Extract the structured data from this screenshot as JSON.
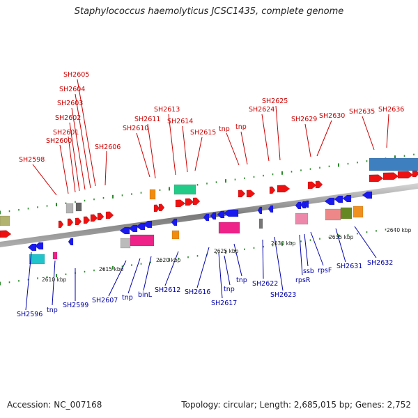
{
  "title": "Staphylococcus haemolyticus JCSC1435, complete genome",
  "accession_text": "Accession: NC_007168",
  "topology_text": "Topology: circular; Length: 2,685,015 bp; Genes: 2,752",
  "colors": {
    "forward_gene": "#ee1111",
    "reverse_gene": "#1a1aee",
    "top_label": "#cc0000",
    "bottom_label": "#0000aa",
    "backbone": "#8a8a8a",
    "tick": "#2a8a2a"
  },
  "scale_labels": [
    "2610 kbp",
    "2615 kbp",
    "2620 kbp",
    "2625 kbp",
    "2630 kbp",
    "2635 kbp",
    "2640 kbp"
  ],
  "top_labels": [
    "SH2598",
    "SH2600",
    "SH2601",
    "SH2602",
    "SH2603",
    "SH2604",
    "SH2605",
    "SH2606",
    "SH2610",
    "SH2611",
    "SH2613",
    "SH2614",
    "SH2615",
    "tnp",
    "tnp",
    "SH2624",
    "SH2625",
    "SH2629",
    "SH2630",
    "SH2635",
    "SH2636"
  ],
  "bottom_labels": [
    "SH2596",
    "tnp",
    "SH2599",
    "SH2607",
    "tnp",
    "binL",
    "SH2612",
    "SH2616",
    "SH2617",
    "tnp",
    "tnp",
    "SH2622",
    "SH2623",
    "rpsR",
    "ssb",
    "rpsF",
    "SH2631",
    "SH2632"
  ]
}
